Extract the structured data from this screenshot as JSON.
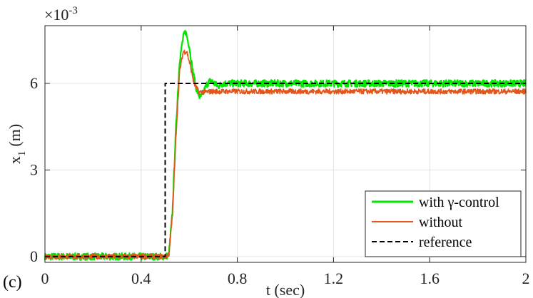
{
  "panel_label": "(c)",
  "chart_data": {
    "type": "line",
    "xlabel": "t (sec)",
    "ylabel": "x",
    "ylabel_subscript": "1",
    "ylabel_unit": "(m)",
    "exponent_label": "×10",
    "exponent_power": "-3",
    "xlim": [
      0,
      2
    ],
    "ylim": [
      -0.0002,
      0.008
    ],
    "xticks": [
      0,
      0.4,
      0.8,
      1.2,
      1.6,
      2
    ],
    "xtick_labels": [
      "0",
      "0.4",
      "0.8",
      "1.2",
      "1.6",
      "2"
    ],
    "yticks": [
      0,
      0.003,
      0.006
    ],
    "ytick_labels": [
      "0",
      "3",
      "6"
    ],
    "grid": true,
    "legend_position": "bottom-right",
    "series": [
      {
        "name": "with γ-control",
        "color": "#00e600",
        "style": "solid",
        "noise": 0.00012,
        "points": [
          [
            0,
            0
          ],
          [
            0.5,
            0
          ],
          [
            0.515,
            5e-05
          ],
          [
            0.53,
            0.0015
          ],
          [
            0.545,
            0.0045
          ],
          [
            0.56,
            0.0068
          ],
          [
            0.575,
            0.0076
          ],
          [
            0.585,
            0.0078
          ],
          [
            0.6,
            0.0073
          ],
          [
            0.615,
            0.0064
          ],
          [
            0.63,
            0.0058
          ],
          [
            0.645,
            0.0055
          ],
          [
            0.66,
            0.0057
          ],
          [
            0.675,
            0.006
          ],
          [
            0.69,
            0.0061
          ],
          [
            0.705,
            0.006
          ],
          [
            0.72,
            0.0059
          ],
          [
            0.74,
            0.006
          ],
          [
            2,
            0.006
          ]
        ]
      },
      {
        "name": "without",
        "color": "#e2551b",
        "style": "solid",
        "noise": 9e-05,
        "points": [
          [
            0,
            0
          ],
          [
            0.5,
            0
          ],
          [
            0.515,
            5e-05
          ],
          [
            0.53,
            0.0014
          ],
          [
            0.545,
            0.0042
          ],
          [
            0.56,
            0.0064
          ],
          [
            0.575,
            0.0071
          ],
          [
            0.59,
            0.0071
          ],
          [
            0.605,
            0.0066
          ],
          [
            0.62,
            0.006
          ],
          [
            0.64,
            0.0057
          ],
          [
            0.66,
            0.0057
          ],
          [
            0.7,
            0.00572
          ],
          [
            2,
            0.00572
          ]
        ]
      },
      {
        "name": "reference",
        "color": "#000000",
        "style": "dashed",
        "noise": 0,
        "points": [
          [
            0,
            0
          ],
          [
            0.5,
            0
          ],
          [
            0.5,
            0.006
          ],
          [
            2,
            0.006
          ]
        ]
      }
    ]
  }
}
